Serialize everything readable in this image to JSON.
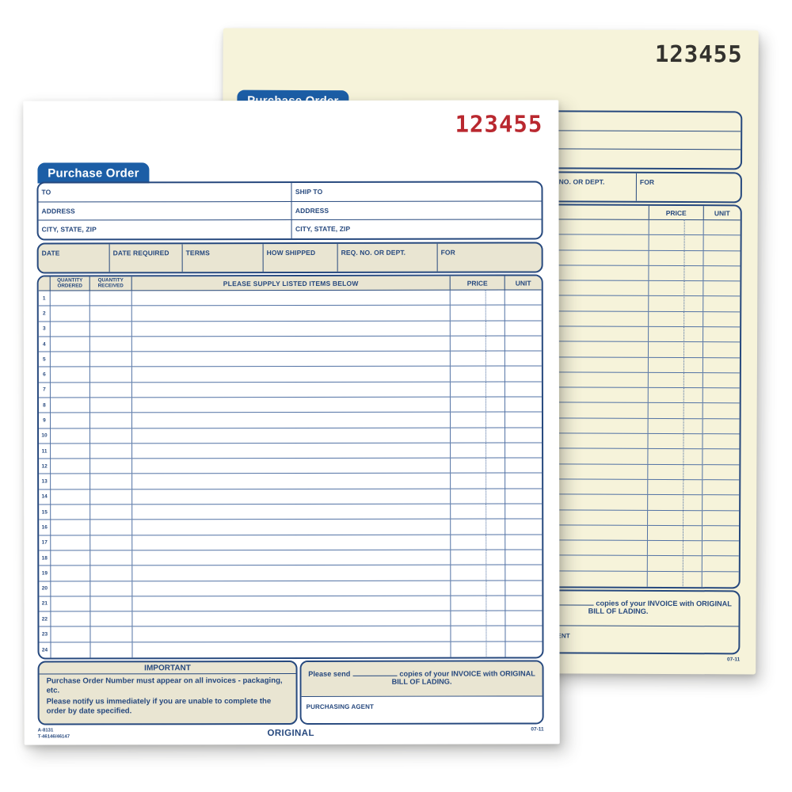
{
  "po": {
    "serial": "123455",
    "tab_title": "Purchase Order",
    "bill_to": {
      "to": "TO",
      "address": "ADDRESS",
      "city_state_zip": "CITY, STATE, ZIP"
    },
    "ship_to": {
      "to": "SHIP TO",
      "address": "ADDRESS",
      "city_state_zip": "CITY, STATE, ZIP"
    },
    "info_labels": {
      "date": "DATE",
      "date_required": "DATE REQUIRED",
      "terms": "TERMS",
      "how_shipped": "HOW SHIPPED",
      "req_no": "REQ. NO. OR DEPT.",
      "for": "FOR"
    },
    "table": {
      "qty_ordered": [
        "QUANTITY",
        "ORDERED"
      ],
      "qty_received": [
        "QUANTITY",
        "RECEIVED"
      ],
      "items_header": "PLEASE SUPPLY LISTED ITEMS BELOW",
      "price_header": "PRICE",
      "unit_header": "UNIT",
      "row_numbers": [
        "1",
        "2",
        "3",
        "4",
        "5",
        "6",
        "7",
        "8",
        "9",
        "10",
        "11",
        "12",
        "13",
        "14",
        "15",
        "16",
        "17",
        "18",
        "19",
        "20",
        "21",
        "22",
        "23",
        "24"
      ]
    },
    "important": {
      "title": "IMPORTANT",
      "note1": "Purchase Order Number must appear on all invoices - packaging, etc.",
      "note2": "Please notify us immediately if you are unable to complete the order by date specified."
    },
    "invoice_note": {
      "before_blank": "Please send",
      "after_blank": "copies of your INVOICE with ORIGINAL BILL OF LADING."
    },
    "purchasing_agent_label": "PURCHASING AGENT",
    "footer": {
      "form_code": "A-8131",
      "alt_code": "T-46146/46147",
      "copy_type": "ORIGINAL",
      "revision": "07-11"
    },
    "colors": {
      "navy": "#27497e",
      "tab_blue": "#1c5ea6",
      "tan_fill": "#e9e5d2",
      "serial_red": "#b9282f",
      "serial_black": "#33322e",
      "canary_paper": "#f6f3da",
      "white_paper": "#ffffff"
    }
  }
}
